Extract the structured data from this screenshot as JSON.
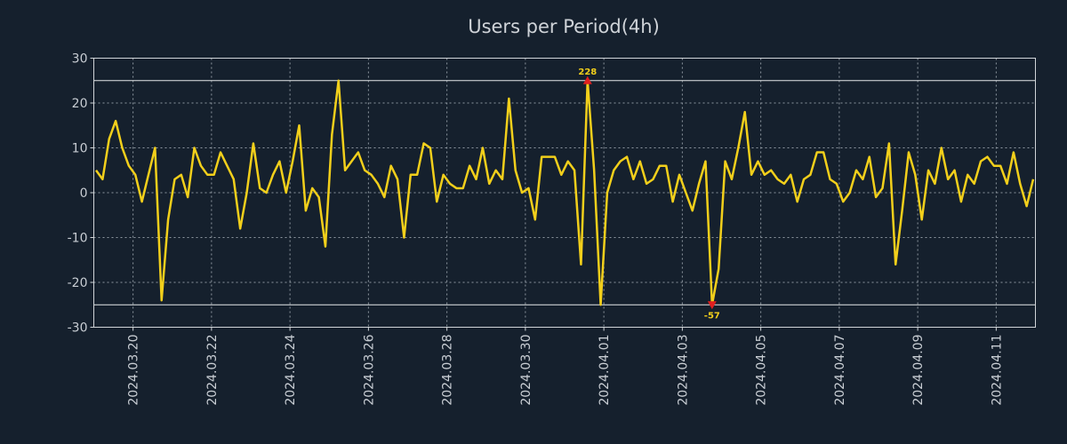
{
  "chart_data": {
    "type": "line",
    "title": "Users per Period(4h)",
    "xlabel": "",
    "ylabel": "",
    "ylim": [
      -30,
      30
    ],
    "yticks": [
      -30,
      -20,
      -10,
      0,
      10,
      20,
      30
    ],
    "y_display_limits": [
      -25,
      25
    ],
    "x_start": "2024.03.19",
    "x_end": "2024.04.12",
    "xticks": [
      "2024.03.20",
      "2024.03.22",
      "2024.03.24",
      "2024.03.26",
      "2024.03.28",
      "2024.03.30",
      "2024.04.01",
      "2024.04.03",
      "2024.04.05",
      "2024.04.07",
      "2024.04.09",
      "2024.04.11"
    ],
    "grid": true,
    "series": [
      {
        "name": "users",
        "color": "#f2cf1b",
        "values": [
          5,
          3,
          12,
          16,
          10,
          6,
          4,
          -2,
          4,
          10,
          -24,
          -6,
          3,
          4,
          -1,
          10,
          6,
          4,
          4,
          9,
          6,
          3,
          -8,
          0,
          11,
          1,
          0,
          4,
          7,
          0,
          7,
          15,
          -4,
          1,
          -1,
          -12,
          13,
          25,
          5,
          7,
          9,
          5,
          4,
          2,
          -1,
          6,
          3,
          -10,
          4,
          4,
          11,
          10,
          -2,
          4,
          2,
          1,
          1,
          6,
          3,
          10,
          2,
          5,
          3,
          21,
          5,
          0,
          1,
          -6,
          8,
          8,
          8,
          4,
          7,
          5,
          -16,
          25,
          5,
          -25,
          0,
          5,
          7,
          8,
          3,
          7,
          2,
          3,
          6,
          6,
          -2,
          4,
          0,
          -4,
          2,
          7,
          -25,
          -17,
          7,
          3,
          10,
          18,
          4,
          7,
          4,
          5,
          3,
          2,
          4,
          -2,
          3,
          4,
          9,
          9,
          3,
          2,
          -2,
          0,
          5,
          3,
          8,
          -1,
          1,
          11,
          -16,
          -4,
          9,
          4,
          -6,
          5,
          2,
          10,
          3,
          5,
          -2,
          4,
          2,
          7,
          8,
          6,
          6,
          2,
          9,
          2,
          -3,
          3
        ]
      }
    ],
    "annotations": [
      {
        "label": "228",
        "index": 75,
        "y": 25,
        "marker": "triangle-up",
        "color": "#e01f1f",
        "text_color": "#f2cf1b"
      },
      {
        "label": "-57",
        "index": 94,
        "y": -25,
        "marker": "triangle-down",
        "color": "#e01f1f",
        "text_color": "#f2cf1b"
      }
    ]
  }
}
